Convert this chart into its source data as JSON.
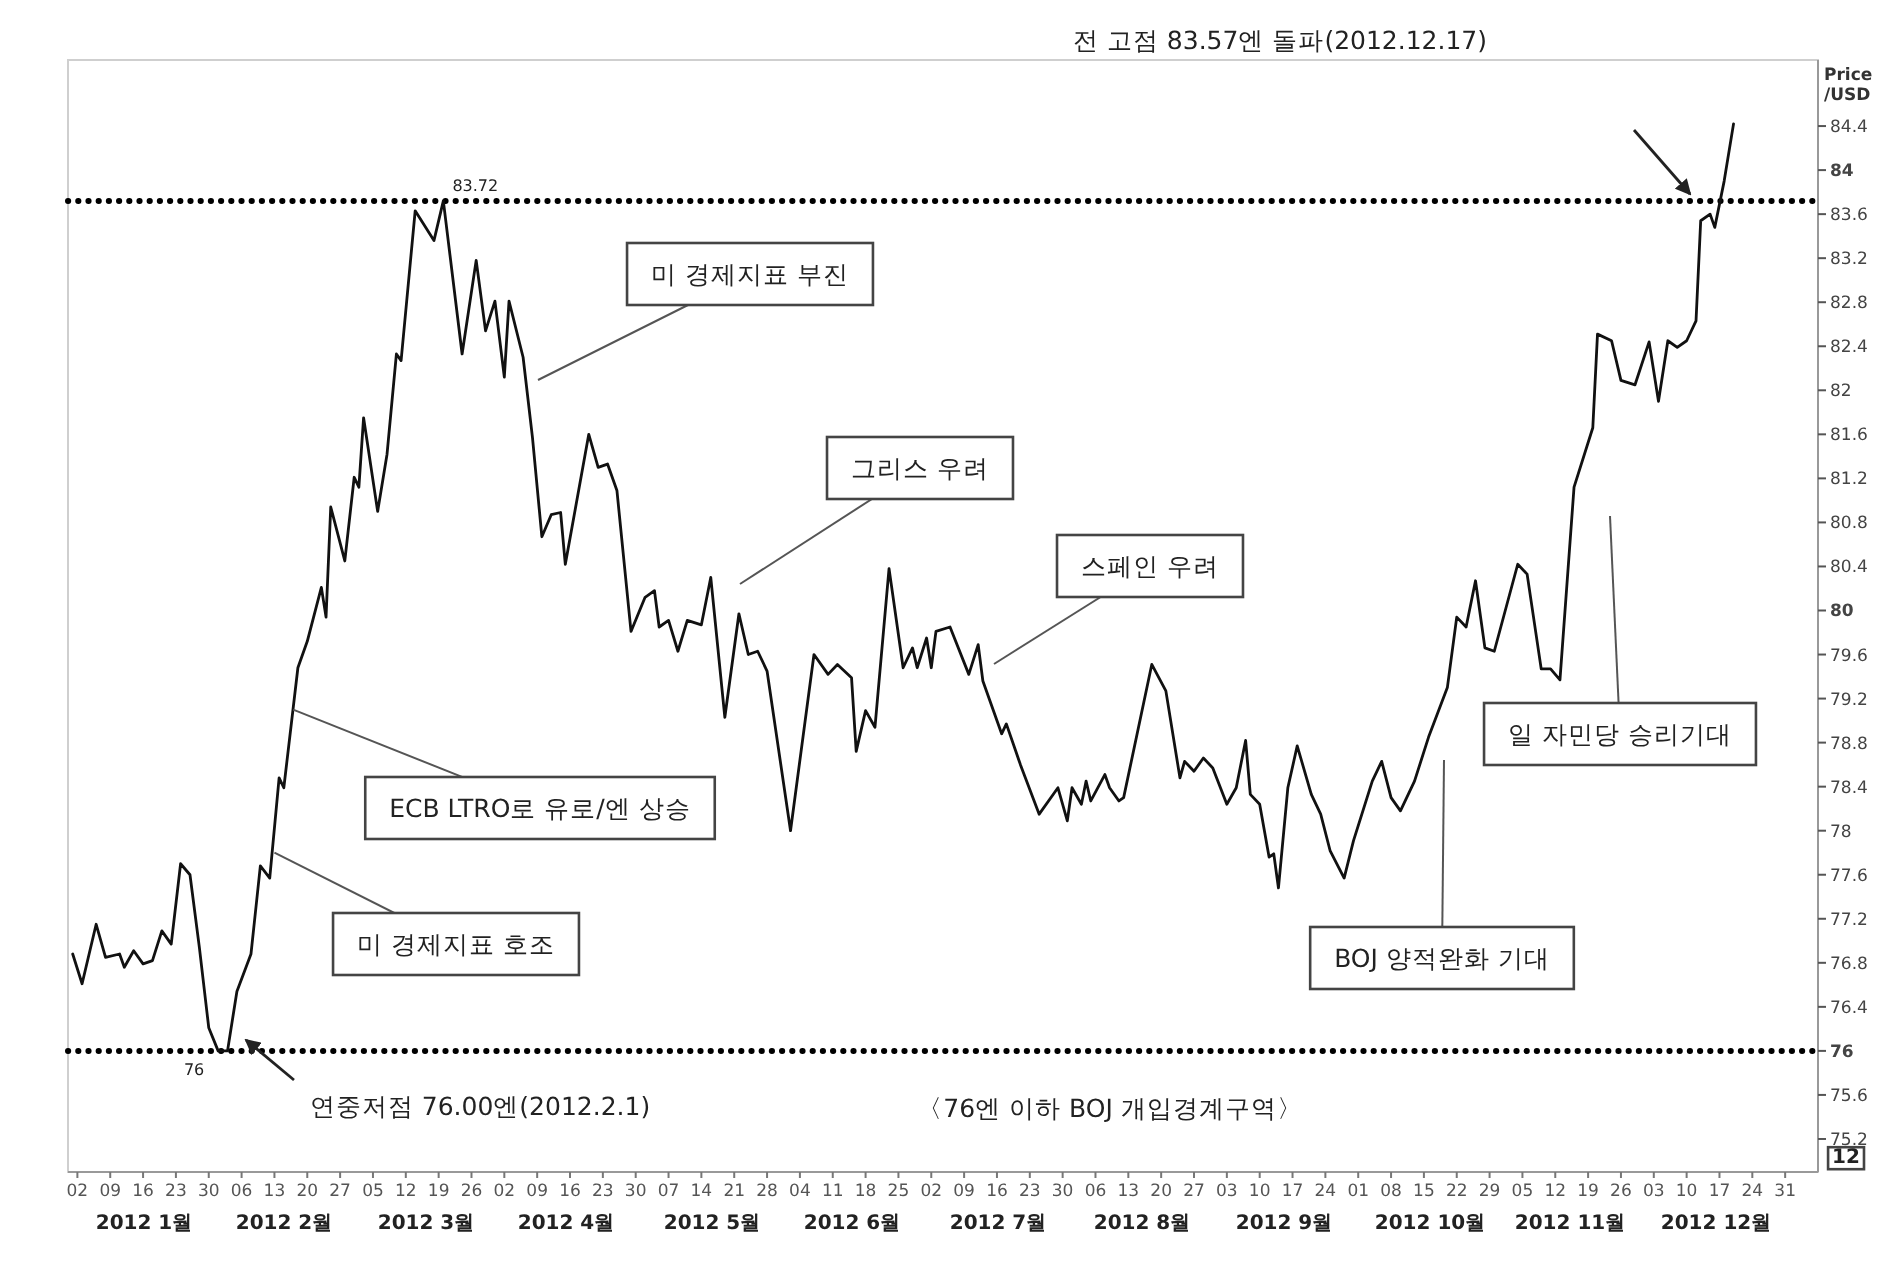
{
  "chart_data": {
    "type": "line",
    "ylabel": "Price\n/USD",
    "line_style": "solid",
    "grid": false,
    "x": [
      "2012-01-01",
      "2012-01-03",
      "2012-01-06",
      "2012-01-08",
      "2012-01-11",
      "2012-01-12",
      "2012-01-14",
      "2012-01-16",
      "2012-01-18",
      "2012-01-20",
      "2012-01-22",
      "2012-01-24",
      "2012-01-26",
      "2012-01-28",
      "2012-01-30",
      "2012-02-01",
      "2012-02-03",
      "2012-02-05",
      "2012-02-08",
      "2012-02-10",
      "2012-02-12",
      "2012-02-14",
      "2012-02-15",
      "2012-02-18",
      "2012-02-20",
      "2012-02-23",
      "2012-02-24",
      "2012-02-25",
      "2012-02-28",
      "2012-03-01",
      "2012-03-02",
      "2012-03-03",
      "2012-03-06",
      "2012-03-08",
      "2012-03-10",
      "2012-03-11",
      "2012-03-14",
      "2012-03-18",
      "2012-03-20",
      "2012-03-24",
      "2012-03-27",
      "2012-03-29",
      "2012-03-31",
      "2012-04-02",
      "2012-04-03",
      "2012-04-06",
      "2012-04-08",
      "2012-04-10",
      "2012-04-12",
      "2012-04-14",
      "2012-04-15",
      "2012-04-20",
      "2012-04-22",
      "2012-04-24",
      "2012-04-26",
      "2012-04-29",
      "2012-05-02",
      "2012-05-04",
      "2012-05-05",
      "2012-05-07",
      "2012-05-09",
      "2012-05-11",
      "2012-05-14",
      "2012-05-16",
      "2012-05-19",
      "2012-05-22",
      "2012-05-24",
      "2012-05-26",
      "2012-05-28",
      "2012-06-02",
      "2012-06-07",
      "2012-06-10",
      "2012-06-12",
      "2012-06-15",
      "2012-06-16",
      "2012-06-18",
      "2012-06-20",
      "2012-06-23",
      "2012-06-26",
      "2012-06-28",
      "2012-06-29",
      "2012-07-01",
      "2012-07-02",
      "2012-07-03",
      "2012-07-06",
      "2012-07-10",
      "2012-07-12",
      "2012-07-13",
      "2012-07-17",
      "2012-07-18",
      "2012-07-21",
      "2012-07-25",
      "2012-07-29",
      "2012-07-31",
      "2012-08-01",
      "2012-08-03",
      "2012-08-04",
      "2012-08-05",
      "2012-08-08",
      "2012-08-09",
      "2012-08-11",
      "2012-08-12",
      "2012-08-18",
      "2012-08-21",
      "2012-08-24",
      "2012-08-25",
      "2012-08-27",
      "2012-08-29",
      "2012-08-31",
      "2012-09-03",
      "2012-09-05",
      "2012-09-07",
      "2012-09-08",
      "2012-09-10",
      "2012-09-12",
      "2012-09-13",
      "2012-09-14",
      "2012-09-16",
      "2012-09-18",
      "2012-09-21",
      "2012-09-23",
      "2012-09-25",
      "2012-09-28",
      "2012-09-30",
      "2012-10-04",
      "2012-10-06",
      "2012-10-08",
      "2012-10-10",
      "2012-10-13",
      "2012-10-16",
      "2012-10-20",
      "2012-10-22",
      "2012-10-24",
      "2012-10-26",
      "2012-10-28",
      "2012-10-30",
      "2012-11-04",
      "2012-11-06",
      "2012-11-09",
      "2012-11-11",
      "2012-11-13",
      "2012-11-16",
      "2012-11-20",
      "2012-11-21",
      "2012-11-24",
      "2012-11-26",
      "2012-11-29",
      "2012-12-02",
      "2012-12-04",
      "2012-12-06",
      "2012-12-08",
      "2012-12-10",
      "2012-12-12",
      "2012-12-13",
      "2012-12-15",
      "2012-12-16",
      "2012-12-18",
      "2012-12-20"
    ],
    "series": [
      {
        "color": "#111111",
        "values": [
          76.88,
          76.61,
          77.15,
          76.85,
          76.88,
          76.76,
          76.91,
          76.79,
          76.82,
          77.09,
          76.97,
          77.7,
          77.6,
          76.94,
          76.21,
          76.0,
          76.0,
          76.54,
          76.88,
          77.68,
          77.57,
          78.48,
          78.39,
          79.48,
          79.72,
          80.21,
          79.94,
          80.94,
          80.45,
          81.21,
          81.12,
          81.75,
          80.9,
          81.42,
          82.33,
          82.27,
          83.63,
          83.36,
          83.72,
          82.33,
          83.18,
          82.54,
          82.81,
          82.12,
          82.81,
          82.3,
          81.57,
          80.67,
          80.87,
          80.89,
          80.42,
          81.6,
          81.3,
          81.33,
          81.09,
          79.81,
          80.12,
          80.18,
          79.85,
          79.91,
          79.63,
          79.91,
          79.87,
          80.3,
          79.03,
          79.97,
          79.6,
          79.63,
          79.45,
          78.0,
          79.6,
          79.42,
          79.51,
          79.39,
          78.72,
          79.09,
          78.94,
          80.38,
          79.48,
          79.66,
          79.48,
          79.75,
          79.48,
          79.81,
          79.85,
          79.42,
          79.69,
          79.36,
          78.88,
          78.97,
          78.6,
          78.15,
          78.39,
          78.09,
          78.39,
          78.24,
          78.45,
          78.27,
          78.51,
          78.39,
          78.27,
          78.3,
          79.51,
          79.27,
          78.48,
          78.63,
          78.54,
          78.66,
          78.57,
          78.24,
          78.39,
          78.82,
          78.33,
          78.24,
          77.76,
          77.79,
          77.48,
          78.39,
          78.77,
          78.33,
          78.15,
          77.82,
          77.57,
          77.91,
          78.45,
          78.63,
          78.3,
          78.18,
          78.45,
          78.85,
          79.3,
          79.94,
          79.85,
          80.27,
          79.66,
          79.63,
          80.42,
          80.33,
          79.47,
          79.47,
          79.37,
          81.12,
          81.66,
          82.51,
          82.45,
          82.09,
          82.05,
          82.44,
          81.9,
          82.45,
          82.39,
          82.45,
          82.63,
          83.54,
          83.6,
          83.48,
          83.9,
          84.42
        ]
      }
    ],
    "xlim": [
      "2011-12-31",
      "2013-01-07"
    ],
    "ylim": [
      74.9,
      85.0
    ],
    "xticks": [
      {
        "value": "2012-01-02",
        "label": "02"
      },
      {
        "value": "2012-01-09",
        "label": "09"
      },
      {
        "value": "2012-01-16",
        "label": "16"
      },
      {
        "value": "2012-01-23",
        "label": "23"
      },
      {
        "value": "2012-01-30",
        "label": "30"
      },
      {
        "value": "2012-02-06",
        "label": "06"
      },
      {
        "value": "2012-02-13",
        "label": "13"
      },
      {
        "value": "2012-02-20",
        "label": "20"
      },
      {
        "value": "2012-02-27",
        "label": "27"
      },
      {
        "value": "2012-03-05",
        "label": "05"
      },
      {
        "value": "2012-03-12",
        "label": "12"
      },
      {
        "value": "2012-03-19",
        "label": "19"
      },
      {
        "value": "2012-03-26",
        "label": "26"
      },
      {
        "value": "2012-04-02",
        "label": "02"
      },
      {
        "value": "2012-04-09",
        "label": "09"
      },
      {
        "value": "2012-04-16",
        "label": "16"
      },
      {
        "value": "2012-04-23",
        "label": "23"
      },
      {
        "value": "2012-04-30",
        "label": "30"
      },
      {
        "value": "2012-05-07",
        "label": "07"
      },
      {
        "value": "2012-05-14",
        "label": "14"
      },
      {
        "value": "2012-05-21",
        "label": "21"
      },
      {
        "value": "2012-05-28",
        "label": "28"
      },
      {
        "value": "2012-06-04",
        "label": "04"
      },
      {
        "value": "2012-06-11",
        "label": "11"
      },
      {
        "value": "2012-06-18",
        "label": "18"
      },
      {
        "value": "2012-06-25",
        "label": "25"
      },
      {
        "value": "2012-07-02",
        "label": "02"
      },
      {
        "value": "2012-07-09",
        "label": "09"
      },
      {
        "value": "2012-07-16",
        "label": "16"
      },
      {
        "value": "2012-07-23",
        "label": "23"
      },
      {
        "value": "2012-07-30",
        "label": "30"
      },
      {
        "value": "2012-08-06",
        "label": "06"
      },
      {
        "value": "2012-08-13",
        "label": "13"
      },
      {
        "value": "2012-08-20",
        "label": "20"
      },
      {
        "value": "2012-08-27",
        "label": "27"
      },
      {
        "value": "2012-09-03",
        "label": "03"
      },
      {
        "value": "2012-09-10",
        "label": "10"
      },
      {
        "value": "2012-09-17",
        "label": "17"
      },
      {
        "value": "2012-09-24",
        "label": "24"
      },
      {
        "value": "2012-10-01",
        "label": "01"
      },
      {
        "value": "2012-10-08",
        "label": "08"
      },
      {
        "value": "2012-10-15",
        "label": "15"
      },
      {
        "value": "2012-10-22",
        "label": "22"
      },
      {
        "value": "2012-10-29",
        "label": "29"
      },
      {
        "value": "2012-11-05",
        "label": "05"
      },
      {
        "value": "2012-11-12",
        "label": "12"
      },
      {
        "value": "2012-11-19",
        "label": "19"
      },
      {
        "value": "2012-11-26",
        "label": "26"
      },
      {
        "value": "2012-12-03",
        "label": "03"
      },
      {
        "value": "2012-12-10",
        "label": "10"
      },
      {
        "value": "2012-12-17",
        "label": "17"
      },
      {
        "value": "2012-12-24",
        "label": "24"
      },
      {
        "value": "2012-12-31",
        "label": "31"
      }
    ],
    "yticks": [
      75.2,
      75.6,
      76,
      76.4,
      76.8,
      77.2,
      77.6,
      78,
      78.4,
      78.8,
      79.2,
      79.6,
      80,
      80.4,
      80.8,
      81.2,
      81.6,
      82,
      82.4,
      82.8,
      83.2,
      83.6,
      84,
      84.4
    ],
    "ref_lines": [
      {
        "axis": "y",
        "value": 83.72,
        "label": "83.72",
        "line_style": "dotted",
        "color": "#000000"
      },
      {
        "axis": "y",
        "value": 76,
        "label": "76",
        "line_style": "dotted",
        "color": "#000000"
      }
    ],
    "annotations": [
      "전 고점 83.57엔 돌파(2012.12.17)",
      "미 경제지표 부진",
      "그리스 우려",
      "스페인 우려",
      {
        "text": "ECB LTRO로 유로/엔 상승",
        "x": "2012-02-17",
        "y": 79.1
      },
      {
        "text": "미 경제지표 호조",
        "x": "2012-02-13",
        "y": 77.8
      },
      "BOJ 양적완화 기대",
      "일 자민당 승리기대",
      "연중저점 76.00엔(2012.2.1)",
      "〈76엔 이하 BOJ 개입경계구역〉",
      "12",
      "2012 1월",
      "2012 2월",
      "2012 3월",
      "2012 4월",
      "2012 5월",
      "2012 6월",
      "2012 7월",
      "2012 8월",
      "2012 9월",
      "2012 10월",
      "2012 11월",
      "2012 12월"
    ]
  }
}
